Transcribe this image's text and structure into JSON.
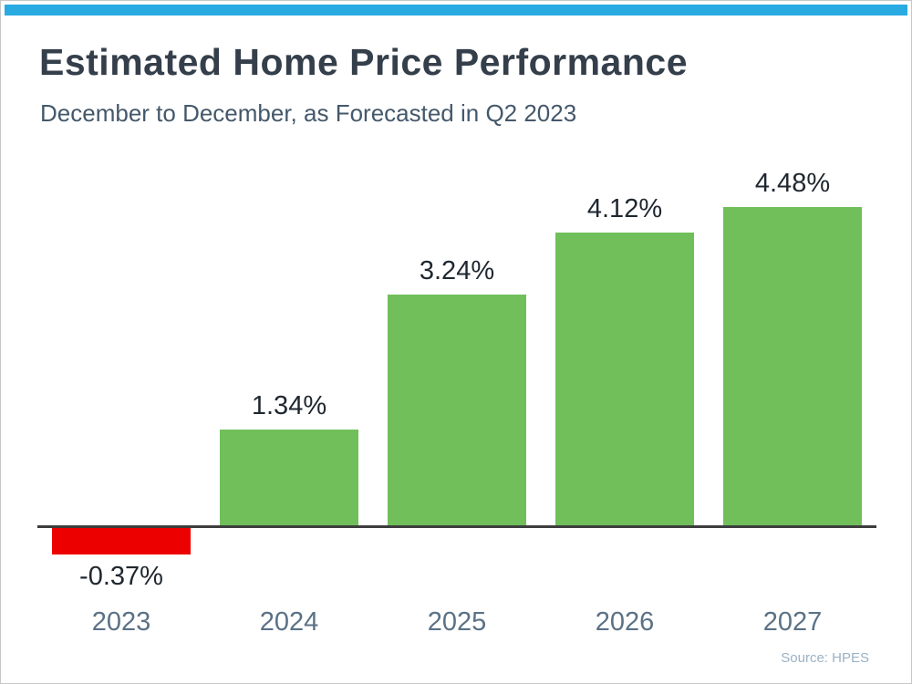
{
  "page": {
    "accent_color": "#29ABE2"
  },
  "chart_data": {
    "type": "bar",
    "title": "Estimated Home Price Performance",
    "subtitle": "December to December, as Forecasted in Q2 2023",
    "categories": [
      "2023",
      "2024",
      "2025",
      "2026",
      "2027"
    ],
    "values": [
      -0.37,
      1.34,
      3.24,
      4.12,
      4.48
    ],
    "value_labels": [
      "-0.37%",
      "1.34%",
      "3.24%",
      "4.12%",
      "4.48%"
    ],
    "xlabel": "",
    "ylabel": "",
    "ylim": [
      -0.8,
      5.0
    ],
    "grid": false,
    "legend": "none",
    "positive_color": "#71BF5B",
    "negative_color": "#EC0000",
    "axis_color": "#3d3d3d",
    "source": "Source: HPES"
  }
}
